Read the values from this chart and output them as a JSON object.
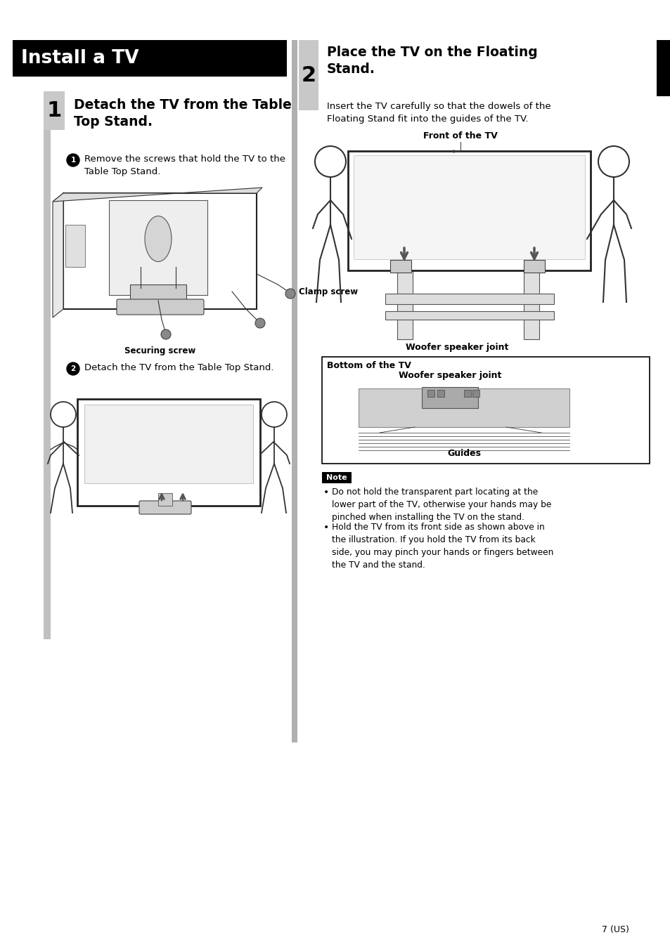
{
  "page_bg": "#ffffff",
  "title_bar_color": "#000000",
  "title_bar_text": "Install a TV",
  "title_bar_text_color": "#ffffff",
  "step1_num": "1",
  "step1_header": "Detach the TV from the Table\nTop Stand.",
  "step1_sub1_text": "Remove the screws that hold the TV to the\nTable Top Stand.",
  "clamp_label": "Clamp screw",
  "securing_label": "Securing screw",
  "step1_sub2_text": "Detach the TV from the Table Top Stand.",
  "step2_num": "2",
  "step2_header": "Place the TV on the Floating\nStand.",
  "step2_desc": "Insert the TV carefully so that the dowels of the\nFloating Stand fit into the guides of the TV.",
  "front_label": "Front of the TV",
  "woofer_label1": "Woofer speaker joint",
  "box_label_bottom": "Bottom of the TV",
  "box_label_woofer": "Woofer speaker joint",
  "box_label_guides": "Guides",
  "note_header": "Note",
  "note_bullet1": "Do not hold the transparent part locating at the\nlower part of the TV, otherwise your hands may be\npinched when installing the TV on the stand.",
  "note_bullet2": "Hold the TV from its front side as shown above in\nthe illustration. If you hold the TV from its back\nside, you may pinch your hands or fingers between\nthe TV and the stand.",
  "page_number": "7 (US)",
  "step_num_bg": "#c8c8c8",
  "left_bar_color": "#c0c0c0",
  "note_bg": "#000000",
  "note_text_color": "#ffffff",
  "box_border_color": "#000000",
  "box_bg": "#ffffff",
  "divider_color": "#b0b0b0",
  "black_tab_color": "#000000"
}
